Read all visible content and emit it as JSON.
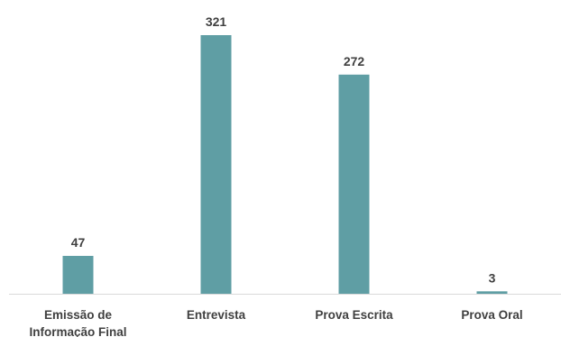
{
  "chart_data": {
    "type": "bar",
    "categories": [
      [
        "Emissão de",
        "Informação Final"
      ],
      [
        "Entrevista"
      ],
      [
        "Prova Escrita"
      ],
      [
        "Prova Oral"
      ]
    ],
    "values": [
      47,
      321,
      272,
      3
    ],
    "ylim": [
      0,
      321
    ],
    "grid": false,
    "legend": "none",
    "bar_color": "#5f9ea4",
    "axis_color": "#d9d9d9",
    "text_color": "#404040"
  }
}
